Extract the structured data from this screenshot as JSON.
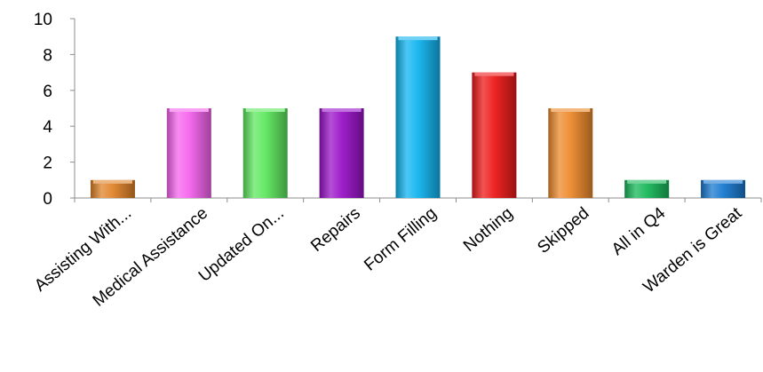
{
  "chart_data": {
    "type": "bar",
    "categories": [
      "Assisting With...",
      "Medical Assistance",
      "Updated On...",
      "Repairs",
      "Form Filling",
      "Nothing",
      "Skipped",
      "All in Q4",
      "Warden is Great"
    ],
    "values": [
      1,
      5,
      5,
      5,
      9,
      7,
      5,
      1,
      1
    ],
    "colors": [
      "#e0842a",
      "#f564ee",
      "#5fe85f",
      "#9a14c8",
      "#12b4f0",
      "#ee1a1a",
      "#ed8a2c",
      "#18b85a",
      "#1a7ad0"
    ],
    "title": "",
    "xlabel": "",
    "ylabel": "",
    "ylim": [
      0,
      10
    ],
    "yticks": [
      0,
      2,
      4,
      6,
      8,
      10
    ],
    "grid": false,
    "legend": "none"
  }
}
